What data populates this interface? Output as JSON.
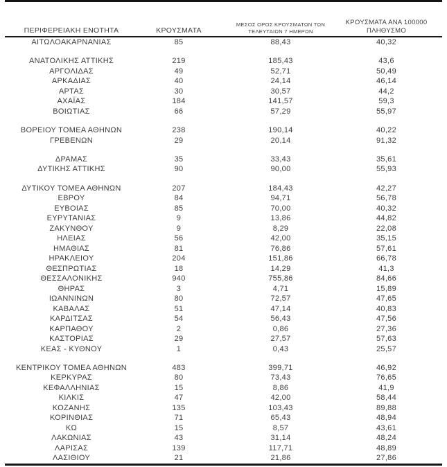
{
  "colors": {
    "background": "#ffffff",
    "text": "#3c3c3c",
    "rule_lines": "#151515"
  },
  "table": {
    "headers": [
      [
        "ΠΕΡΙΦΕΡΕΙΑΚΗ ΕΝΟΤΗΤΑ"
      ],
      [
        "ΚΡΟΥΣΜΑΤΑ"
      ],
      [
        "ΜΕΣΟΣ ΟΡΟΣ ΚΡΟΥΣΜΑΤΩΝ ΤΩΝ",
        "ΤΕΛΕΥΤΑΙΩΝ 7 ΗΜΕΡΩΝ"
      ],
      [
        "ΚΡΟΥΣΜΑΤΑ ΑΝΑ 100000",
        "ΠΛΗΘΥΣΜΟ"
      ]
    ],
    "rows": [
      [
        "ΑΙΤΩΛΟΑΚΑΡΝΑΝΙΑΣ",
        "85",
        "88,43",
        "40,32"
      ],
      null,
      [
        "ΑΝΑΤΟΛΙΚΗΣ ΑΤΤΙΚΗΣ",
        "219",
        "185,43",
        "43,6"
      ],
      [
        "ΑΡΓΟΛΙΔΑΣ",
        "49",
        "52,71",
        "50,49"
      ],
      [
        "ΑΡΚΑΔΙΑΣ",
        "40",
        "24,14",
        "46,14"
      ],
      [
        "ΑΡΤΑΣ",
        "30",
        "30,57",
        "44,2"
      ],
      [
        "ΑΧΑΪΑΣ",
        "184",
        "141,57",
        "59,3"
      ],
      [
        "ΒΟΙΩΤΙΑΣ",
        "66",
        "57,29",
        "55,97"
      ],
      null,
      [
        "ΒΟΡΕΙΟΥ ΤΟΜΕΑ ΑΘΗΝΩΝ",
        "238",
        "190,14",
        "40,22"
      ],
      [
        "ΓΡΕΒΕΝΩΝ",
        "29",
        "20,14",
        "91,32"
      ],
      null,
      [
        "ΔΡΑΜΑΣ",
        "35",
        "33,43",
        "35,61"
      ],
      [
        "ΔΥΤΙΚΗΣ ΑΤΤΙΚΗΣ",
        "90",
        "90,00",
        "55,93"
      ],
      null,
      [
        "ΔΥΤΙΚΟΥ ΤΟΜΕΑ ΑΘΗΝΩΝ",
        "207",
        "184,43",
        "42,27"
      ],
      [
        "ΕΒΡΟΥ",
        "84",
        "94,71",
        "56,78"
      ],
      [
        "ΕΥΒΟΙΑΣ",
        "85",
        "70,00",
        "40,32"
      ],
      [
        "ΕΥΡΥΤΑΝΙΑΣ",
        "9",
        "13,86",
        "44,82"
      ],
      [
        "ΖΑΚΥΝΘΟΥ",
        "9",
        "8,29",
        "22,08"
      ],
      [
        "ΗΛΕΙΑΣ",
        "56",
        "42,00",
        "35,15"
      ],
      [
        "ΗΜΑΘΙΑΣ",
        "81",
        "76,86",
        "57,61"
      ],
      [
        "ΗΡΑΚΛΕΙΟΥ",
        "204",
        "151,86",
        "66,78"
      ],
      [
        "ΘΕΣΠΡΩΤΙΑΣ",
        "18",
        "14,29",
        "41,3"
      ],
      [
        "ΘΕΣΣΑΛΟΝΙΚΗΣ",
        "940",
        "755,86",
        "84,66"
      ],
      [
        "ΘΗΡΑΣ",
        "3",
        "4,71",
        "15,89"
      ],
      [
        "ΙΩΑΝΝΙΝΩΝ",
        "80",
        "72,57",
        "47,65"
      ],
      [
        "ΚΑΒΑΛΑΣ",
        "51",
        "47,14",
        "40,83"
      ],
      [
        "ΚΑΡΔΙΤΣΑΣ",
        "54",
        "56,43",
        "47,56"
      ],
      [
        "ΚΑΡΠΑΘΟΥ",
        "2",
        "0,86",
        "27,36"
      ],
      [
        "ΚΑΣΤΟΡΙΑΣ",
        "29",
        "27,57",
        "57,63"
      ],
      [
        "ΚΕΑΣ - ΚΥΘΝΟΥ",
        "1",
        "0,43",
        "25,57"
      ],
      null,
      [
        "ΚΕΝΤΡΙΚΟΥ ΤΟΜΕΑ ΑΘΗΝΩΝ",
        "483",
        "399,71",
        "46,92"
      ],
      [
        "ΚΕΡΚΥΡΑΣ",
        "80",
        "73,43",
        "76,65"
      ],
      [
        "ΚΕΦΑΛΛΗΝΙΑΣ",
        "15",
        "8,86",
        "41,9"
      ],
      [
        "ΚΙΛΚΙΣ",
        "47",
        "42,00",
        "58,44"
      ],
      [
        "ΚΟΖΑΝΗΣ",
        "135",
        "103,43",
        "89,88"
      ],
      [
        "ΚΟΡΙΝΘΙΑΣ",
        "71",
        "65,43",
        "48,94"
      ],
      [
        "ΚΩ",
        "15",
        "8,57",
        "43,61"
      ],
      [
        "ΛΑΚΩΝΙΑΣ",
        "43",
        "31,14",
        "48,24"
      ],
      [
        "ΛΑΡΙΣΑΣ",
        "139",
        "117,71",
        "48,89"
      ],
      [
        "ΛΑΣΙΘΙΟΥ",
        "21",
        "21,86",
        "27,86"
      ]
    ]
  }
}
